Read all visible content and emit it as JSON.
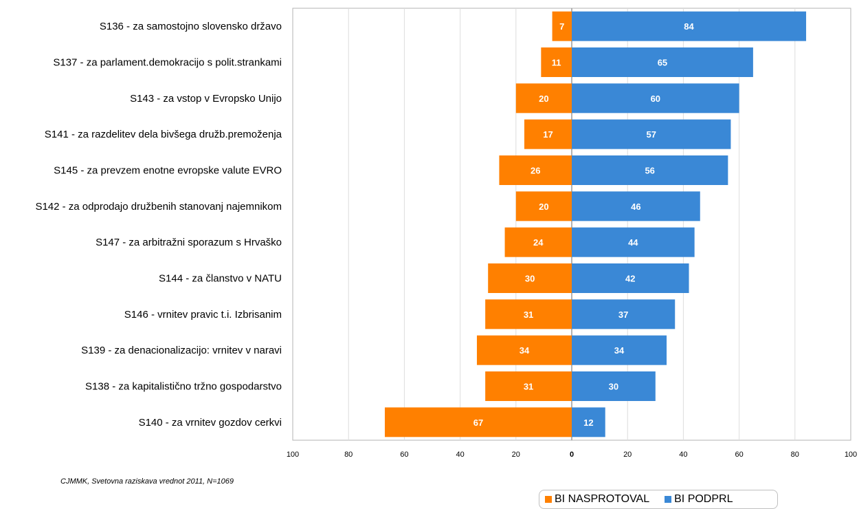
{
  "chart_data": {
    "type": "bar",
    "orientation": "horizontal-diverging",
    "categories": [
      "S136 - za samostojno slovensko državo",
      "S137 - za parlament.demokracijo s polit.strankami",
      "S143 - za vstop v Evropsko Unijo",
      "S141 - za razdelitev dela bivšega družb.premoženja",
      "S145 - za prevzem enotne evropske valute EVRO",
      "S142 - za odprodajo družbenih stanovanj najemnikom",
      "S147 - za arbitražni sporazum s Hrvaško",
      "S144 - za članstvo v NATU",
      "S146 - vrnitev pravic t.i. Izbrisanim",
      "S139 - za denacionalizacijo: vrnitev v naravi",
      "S138 - za kapitalistično tržno gospodarstvo",
      "S140 - za vrnitev gozdov cerkvi"
    ],
    "series": [
      {
        "name": "BI NASPROTOVAL",
        "color": "#ff8000",
        "side": "left",
        "values": [
          7,
          11,
          20,
          17,
          26,
          20,
          24,
          30,
          31,
          34,
          31,
          67
        ]
      },
      {
        "name": "BI PODPRL",
        "color": "#3a88d6",
        "side": "right",
        "values": [
          84,
          65,
          60,
          57,
          56,
          46,
          44,
          42,
          37,
          34,
          30,
          12
        ]
      }
    ],
    "xlim": [
      -100,
      100
    ],
    "xticks": [
      "100",
      "80",
      "60",
      "40",
      "20",
      "0",
      "20",
      "40",
      "60",
      "80",
      "100"
    ],
    "grid": true,
    "legend": "bottom-right"
  },
  "footnote": "CJMMK, Svetovna raziskava vrednot 2011, N=1069",
  "legend": {
    "left_label": "BI NASPROTOVAL",
    "right_label": "BI PODPRL"
  }
}
